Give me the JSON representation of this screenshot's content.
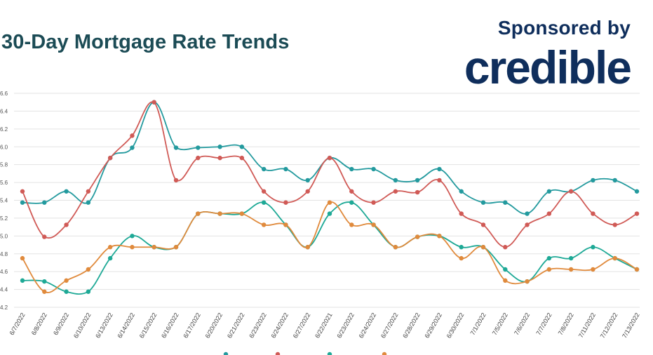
{
  "header": {
    "title": "30-Day Mortgage Rate Trends",
    "sponsor_text": "Sponsored by",
    "brand": "credible"
  },
  "colors": {
    "title": "#1b4b55",
    "brand": "#0f2e5c",
    "grid": "#e3e3e3"
  },
  "chart_data": {
    "type": "line",
    "title": "30-Day Mortgage Rate Trends",
    "xlabel": "",
    "ylabel": "",
    "ylim": [
      4.2,
      6.6
    ],
    "yticks": [
      "4.2",
      "4.4",
      "4.6",
      "4.8",
      "5.0",
      "5.2",
      "5.4",
      "5.6",
      "5.8",
      "6.0",
      "6.2",
      "6.4",
      "6.6"
    ],
    "grid": true,
    "legend_position": "bottom",
    "categories": [
      "6/7/2022",
      "6/8/2022",
      "6/9/2022",
      "6/10/2022",
      "6/13/2022",
      "6/14/2022",
      "6/15/2022",
      "6/16/2022",
      "6/17/2022",
      "6/20/2022",
      "6/21/2022",
      "6/23/2022",
      "6/24/2022",
      "6/27/2022",
      "6/22/2021",
      "6/23/2022",
      "6/24/2022",
      "6/27/2022",
      "6/28/2022",
      "6/29/2022",
      "6/30/2022",
      "7/1/2022",
      "7/5/2022",
      "7/6/2022",
      "7/7/2022",
      "7/8/2022",
      "7/11/2022",
      "7/12/2022",
      "7/13/2022"
    ],
    "series": [
      {
        "color": "#239a9e",
        "values": [
          5.375,
          5.375,
          5.5,
          5.375,
          5.875,
          5.99,
          6.5,
          5.99,
          5.99,
          6.0,
          6.0,
          5.75,
          5.75,
          5.625,
          5.875,
          5.75,
          5.75,
          5.625,
          5.625,
          5.75,
          5.5,
          5.375,
          5.375,
          5.25,
          5.5,
          5.5,
          5.625,
          5.625,
          5.5
        ]
      },
      {
        "color": "#d05a56",
        "values": [
          5.5,
          4.99,
          5.125,
          5.5,
          5.875,
          6.125,
          6.5,
          5.625,
          5.875,
          5.875,
          5.875,
          5.5,
          5.375,
          5.5,
          5.875,
          5.5,
          5.375,
          5.5,
          5.49,
          5.625,
          5.25,
          5.125,
          4.875,
          5.125,
          5.25,
          5.5,
          5.25,
          5.125,
          5.25
        ]
      },
      {
        "color": "#1ea996",
        "values": [
          4.5,
          4.49,
          4.375,
          4.375,
          4.75,
          5.0,
          4.875,
          4.875,
          5.25,
          5.25,
          5.25,
          5.375,
          5.125,
          4.875,
          5.25,
          5.375,
          5.125,
          4.875,
          4.99,
          5.0,
          4.875,
          4.875,
          4.625,
          4.49,
          4.75,
          4.75,
          4.875,
          4.75,
          4.625
        ]
      },
      {
        "color": "#e08a3c",
        "values": [
          4.75,
          4.375,
          4.5,
          4.625,
          4.875,
          4.875,
          4.875,
          4.875,
          5.25,
          5.25,
          5.25,
          5.125,
          5.125,
          4.875,
          5.375,
          5.125,
          5.125,
          4.875,
          4.99,
          5.0,
          4.75,
          4.875,
          4.5,
          4.49,
          4.625,
          4.625,
          4.625,
          4.75,
          4.625
        ]
      }
    ]
  }
}
